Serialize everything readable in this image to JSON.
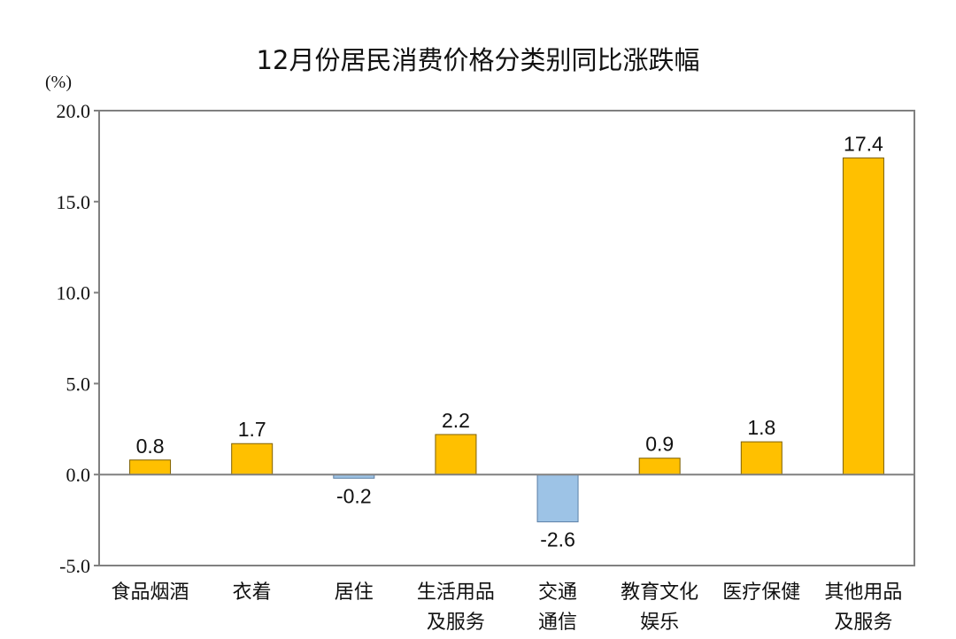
{
  "chart_data": {
    "type": "bar",
    "title": "12月份居民消费价格分类别同比涨跌幅",
    "unit_label": "(%)",
    "categories": [
      [
        "食品烟酒"
      ],
      [
        "衣着"
      ],
      [
        "居住"
      ],
      [
        "生活用品",
        "及服务"
      ],
      [
        "交通",
        "通信"
      ],
      [
        "教育文化",
        "娱乐"
      ],
      [
        "医疗保健"
      ],
      [
        "其他用品",
        "及服务"
      ]
    ],
    "values": [
      0.8,
      1.7,
      -0.2,
      2.2,
      -2.6,
      0.9,
      1.8,
      17.4
    ],
    "value_labels": [
      "0.8",
      "1.7",
      "-0.2",
      "2.2",
      "-2.6",
      "0.9",
      "1.8",
      "17.4"
    ],
    "yticks": [
      -5.0,
      0.0,
      5.0,
      10.0,
      15.0,
      20.0
    ],
    "ytick_labels": [
      "-5.0",
      "0.0",
      "5.0",
      "10.0",
      "15.0",
      "20.0"
    ],
    "ylim": [
      -5.0,
      20.0
    ],
    "grid": false,
    "legend": "none",
    "colors": {
      "positive": "#FFC000",
      "negative": "#9DC3E6",
      "bar_edge": "#7F6000",
      "neg_edge": "#5B7FA6",
      "axis": "#808080",
      "zero_line": "#808080"
    }
  }
}
